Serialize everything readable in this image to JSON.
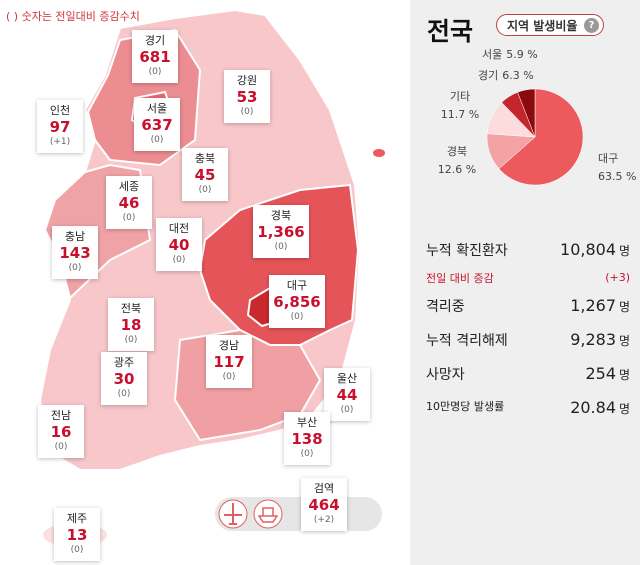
{
  "note": "( ) 숫자는 전일대비 증감수치",
  "regions": [
    {
      "name": "경기",
      "count": "681",
      "change": "(0)"
    },
    {
      "name": "강원",
      "count": "53",
      "change": "(0)"
    },
    {
      "name": "인천",
      "count": "97",
      "change": "(+1)"
    },
    {
      "name": "서울",
      "count": "637",
      "change": "(0)"
    },
    {
      "name": "충북",
      "count": "45",
      "change": "(0)"
    },
    {
      "name": "세종",
      "count": "46",
      "change": "(0)"
    },
    {
      "name": "대전",
      "count": "40",
      "change": "(0)"
    },
    {
      "name": "경북",
      "count": "1,366",
      "change": "(0)"
    },
    {
      "name": "충남",
      "count": "143",
      "change": "(0)"
    },
    {
      "name": "대구",
      "count": "6,856",
      "change": "(0)"
    },
    {
      "name": "전북",
      "count": "18",
      "change": "(0)"
    },
    {
      "name": "경남",
      "count": "117",
      "change": "(0)"
    },
    {
      "name": "울산",
      "count": "44",
      "change": "(0)"
    },
    {
      "name": "광주",
      "count": "30",
      "change": "(0)"
    },
    {
      "name": "부산",
      "count": "138",
      "change": "(0)"
    },
    {
      "name": "전남",
      "count": "16",
      "change": "(0)"
    },
    {
      "name": "검역",
      "count": "464",
      "change": "(+2)"
    },
    {
      "name": "제주",
      "count": "13",
      "change": "(0)"
    }
  ],
  "panel": {
    "title": "전국",
    "button": "지역 발생비율",
    "chart_data": {
      "type": "pie",
      "slices": [
        {
          "name": "대구",
          "value": 63.5,
          "value_label": "63.5 %",
          "color": "#ec5a5e"
        },
        {
          "name": "경북",
          "value": 12.6,
          "value_label": "12.6 %",
          "color": "#f3a3a3"
        },
        {
          "name": "기타",
          "value": 11.7,
          "value_label": "11.7 %",
          "color": "#fcdcdc"
        },
        {
          "name": "경기",
          "value": 6.3,
          "value_label": "6.3 %",
          "color": "#c4262c"
        },
        {
          "name": "서울",
          "value": 5.9,
          "value_label": "5.9 %",
          "color": "#8a0a10"
        }
      ]
    },
    "stats": [
      {
        "label": "누적 확진환자",
        "value": "10,804",
        "unit": "명"
      },
      {
        "label": "전일 대비 증감",
        "value": "(+3)"
      },
      {
        "label": "격리중",
        "value": "1,267",
        "unit": "명"
      },
      {
        "label": "누적 격리해제",
        "value": "9,283",
        "unit": "명"
      },
      {
        "label": "사망자",
        "value": "254",
        "unit": "명"
      },
      {
        "label": "10만명당 발생률",
        "value": "20.84",
        "unit": "명"
      }
    ]
  }
}
